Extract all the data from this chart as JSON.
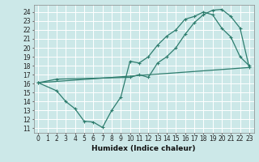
{
  "xlabel": "Humidex (Indice chaleur)",
  "bg_color": "#cce8e8",
  "grid_color": "#ffffff",
  "line_color": "#2e7d6e",
  "xlim": [
    -0.5,
    23.5
  ],
  "ylim": [
    10.5,
    24.8
  ],
  "xticks": [
    0,
    1,
    2,
    3,
    4,
    5,
    6,
    7,
    8,
    9,
    10,
    11,
    12,
    13,
    14,
    15,
    16,
    17,
    18,
    19,
    20,
    21,
    22,
    23
  ],
  "yticks": [
    11,
    12,
    13,
    14,
    15,
    16,
    17,
    18,
    19,
    20,
    21,
    22,
    23,
    24
  ],
  "line1_x": [
    0,
    23
  ],
  "line1_y": [
    16.1,
    17.8
  ],
  "line2_x": [
    0,
    2,
    3,
    4,
    5,
    6,
    7,
    8,
    9,
    10,
    11,
    12,
    13,
    14,
    15,
    16,
    17,
    18,
    19,
    20,
    21,
    22,
    23
  ],
  "line2_y": [
    16.1,
    15.2,
    14.0,
    13.2,
    11.8,
    11.7,
    11.1,
    13.0,
    14.5,
    18.5,
    18.3,
    19.0,
    20.3,
    21.3,
    22.0,
    23.2,
    23.5,
    24.0,
    23.7,
    22.2,
    21.2,
    19.0,
    18.0
  ],
  "line3_x": [
    0,
    2,
    10,
    11,
    12,
    13,
    14,
    15,
    16,
    17,
    18,
    19,
    20,
    21,
    22,
    23
  ],
  "line3_y": [
    16.1,
    16.5,
    16.7,
    17.0,
    16.7,
    18.3,
    19.0,
    20.0,
    21.5,
    22.8,
    23.7,
    24.2,
    24.3,
    23.5,
    22.2,
    17.8
  ]
}
